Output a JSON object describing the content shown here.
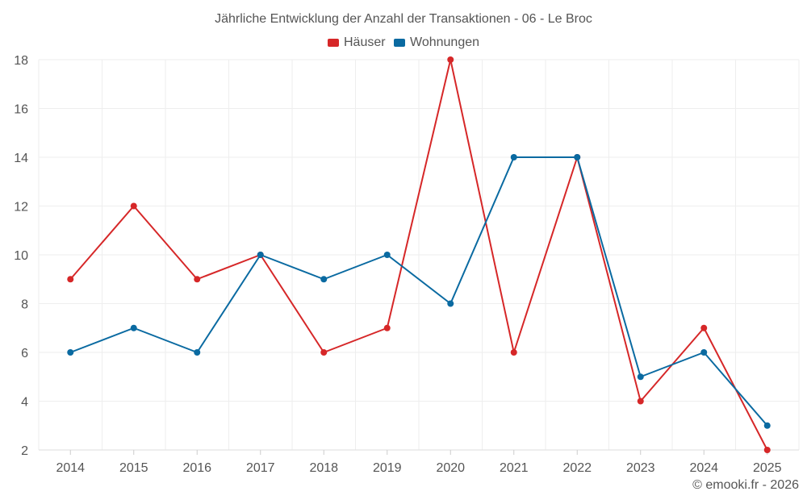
{
  "chart_data": {
    "type": "line",
    "title": "Jährliche Entwicklung der Anzahl der Transaktionen - 06 - Le Broc",
    "categories": [
      "2014",
      "2015",
      "2016",
      "2017",
      "2018",
      "2019",
      "2020",
      "2021",
      "2022",
      "2023",
      "2024",
      "2025"
    ],
    "series": [
      {
        "name": "Häuser",
        "color": "#d62728",
        "values": [
          9,
          12,
          9,
          10,
          6,
          7,
          18,
          6,
          14,
          4,
          7,
          2
        ]
      },
      {
        "name": "Wohnungen",
        "color": "#0a6aa1",
        "values": [
          6,
          7,
          6,
          10,
          9,
          10,
          8,
          14,
          14,
          5,
          6,
          3
        ]
      }
    ],
    "ylim": [
      2,
      18
    ],
    "yticks": [
      "2",
      "4",
      "6",
      "8",
      "10",
      "12",
      "14",
      "16",
      "18"
    ],
    "xlabel": "",
    "ylabel": "",
    "grid": true,
    "legend_position": "top-center"
  },
  "credit": "© emooki.fr - 2026"
}
